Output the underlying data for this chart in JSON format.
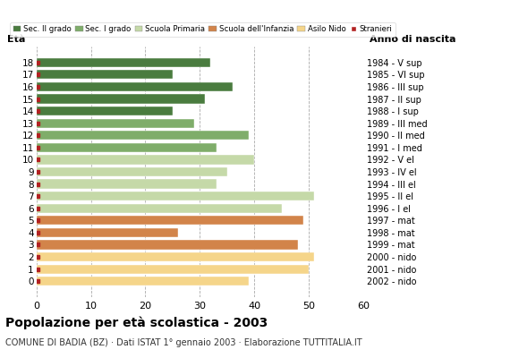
{
  "ages": [
    18,
    17,
    16,
    15,
    14,
    13,
    12,
    11,
    10,
    9,
    8,
    7,
    6,
    5,
    4,
    3,
    2,
    1,
    0
  ],
  "birth_years": [
    "1984 - V sup",
    "1985 - VI sup",
    "1986 - III sup",
    "1987 - II sup",
    "1988 - I sup",
    "1989 - III med",
    "1990 - II med",
    "1991 - I med",
    "1992 - V el",
    "1993 - IV el",
    "1994 - III el",
    "1995 - II el",
    "1996 - I el",
    "1997 - mat",
    "1998 - mat",
    "1999 - mat",
    "2000 - nido",
    "2001 - nido",
    "2002 - nido"
  ],
  "values": [
    32,
    25,
    36,
    31,
    25,
    29,
    39,
    33,
    40,
    35,
    33,
    51,
    45,
    49,
    26,
    48,
    51,
    50,
    39
  ],
  "stranieri": [
    1,
    1,
    1,
    1,
    1,
    1,
    1,
    1,
    1,
    1,
    2,
    2,
    1,
    2,
    1,
    2,
    2,
    3,
    1
  ],
  "bar_colors_by_age": {
    "18": "#4a7c3f",
    "17": "#4a7c3f",
    "16": "#4a7c3f",
    "15": "#4a7c3f",
    "14": "#4a7c3f",
    "13": "#7fad6a",
    "12": "#7fad6a",
    "11": "#7fad6a",
    "10": "#c5d9a8",
    "9": "#c5d9a8",
    "8": "#c5d9a8",
    "7": "#c5d9a8",
    "6": "#c5d9a8",
    "5": "#d2844a",
    "4": "#d2844a",
    "3": "#d2844a",
    "2": "#f5d58a",
    "1": "#f5d58a",
    "0": "#f5d58a"
  },
  "stranieri_color": "#b22222",
  "title_main": "Popolazione per età scolastica - 2003",
  "title_sub": "COMUNE DI BADIA (BZ) · Dati ISTAT 1° gennaio 2003 · Elaborazione TUTTITALIA.IT",
  "xlim": [
    0,
    60
  ],
  "xticks": [
    0,
    10,
    20,
    30,
    40,
    50,
    60
  ],
  "legend_labels": [
    "Sec. II grado",
    "Sec. I grado",
    "Scuola Primaria",
    "Scuola dell'Infanzia",
    "Asilo Nido",
    "Stranieri"
  ],
  "legend_colors": [
    "#4a7c3f",
    "#7fad6a",
    "#c5d9a8",
    "#d2844a",
    "#f5d58a",
    "#b22222"
  ],
  "ylabel": "Età",
  "ylabel_right": "Anno di nascita",
  "background_color": "#ffffff",
  "grid_color": "#aaaaaa"
}
